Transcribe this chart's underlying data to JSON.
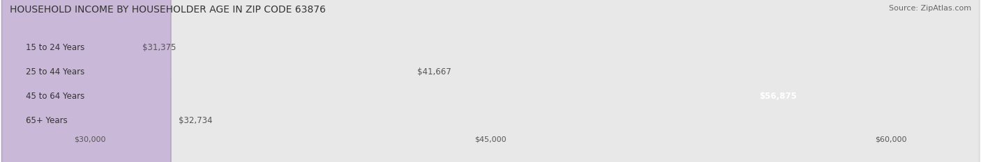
{
  "title": "HOUSEHOLD INCOME BY HOUSEHOLDER AGE IN ZIP CODE 63876",
  "source": "Source: ZipAtlas.com",
  "categories": [
    "15 to 24 Years",
    "25 to 44 Years",
    "45 to 64 Years",
    "65+ Years"
  ],
  "values": [
    31375,
    41667,
    56875,
    32734
  ],
  "bar_colors": [
    "#f5c897",
    "#e89090",
    "#6aaee8",
    "#c9b8d8"
  ],
  "bar_edge_colors": [
    "#d4a870",
    "#cc7070",
    "#4a8ec8",
    "#a898b8"
  ],
  "label_colors": [
    "#555555",
    "#555555",
    "#ffffff",
    "#555555"
  ],
  "value_labels": [
    "$31,375",
    "$41,667",
    "$56,875",
    "$32,734"
  ],
  "x_ticks": [
    30000,
    45000,
    60000
  ],
  "x_tick_labels": [
    "$30,000",
    "$45,000",
    "$60,000"
  ],
  "x_min": 27000,
  "x_max": 63000,
  "background_color": "#f4f4f4",
  "bar_background_color": "#e8e8e8",
  "title_fontsize": 10,
  "source_fontsize": 8,
  "label_fontsize": 8.5,
  "bar_height": 0.55
}
